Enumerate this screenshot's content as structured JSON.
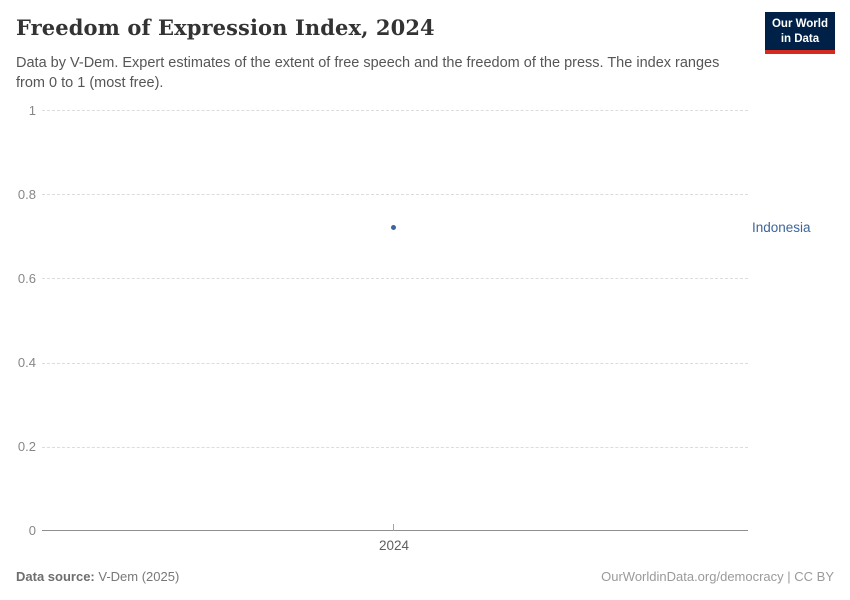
{
  "header": {
    "title": "Freedom of Expression Index, 2024",
    "subtitle": "Data by V-Dem. Expert estimates of the extent of free speech and the freedom of the press. The index ranges from 0 to 1 (most free).",
    "logo": {
      "line1": "Our World",
      "line2": "in Data"
    }
  },
  "chart": {
    "y_ticks": [
      "1",
      "0.8",
      "0.6",
      "0.4",
      "0.2",
      "0"
    ],
    "x_tick": "2024",
    "entity_label": "Indonesia"
  },
  "chart_data": {
    "type": "scatter",
    "title": "Freedom of Expression Index, 2024",
    "x": [
      2024
    ],
    "series": [
      {
        "name": "Indonesia",
        "values": [
          0.72
        ]
      }
    ],
    "xlabel": "",
    "ylabel": "",
    "ylim": [
      0,
      1
    ],
    "yticks": [
      0,
      0.2,
      0.4,
      0.6,
      0.8,
      1
    ],
    "xticks": [
      2024
    ],
    "grid": "horizontal-dashed",
    "legend_position": "label-right-of-plot"
  },
  "footer": {
    "source_label": "Data source:",
    "source_value": "V-Dem (2025)",
    "credit": "OurWorldinData.org/democracy | CC BY"
  },
  "colors": {
    "accent_blue": "#3d659c",
    "logo_bg": "#002147",
    "logo_red": "#d52b1e",
    "grid": "#dcdcdc",
    "axis": "#8f8f8f"
  }
}
